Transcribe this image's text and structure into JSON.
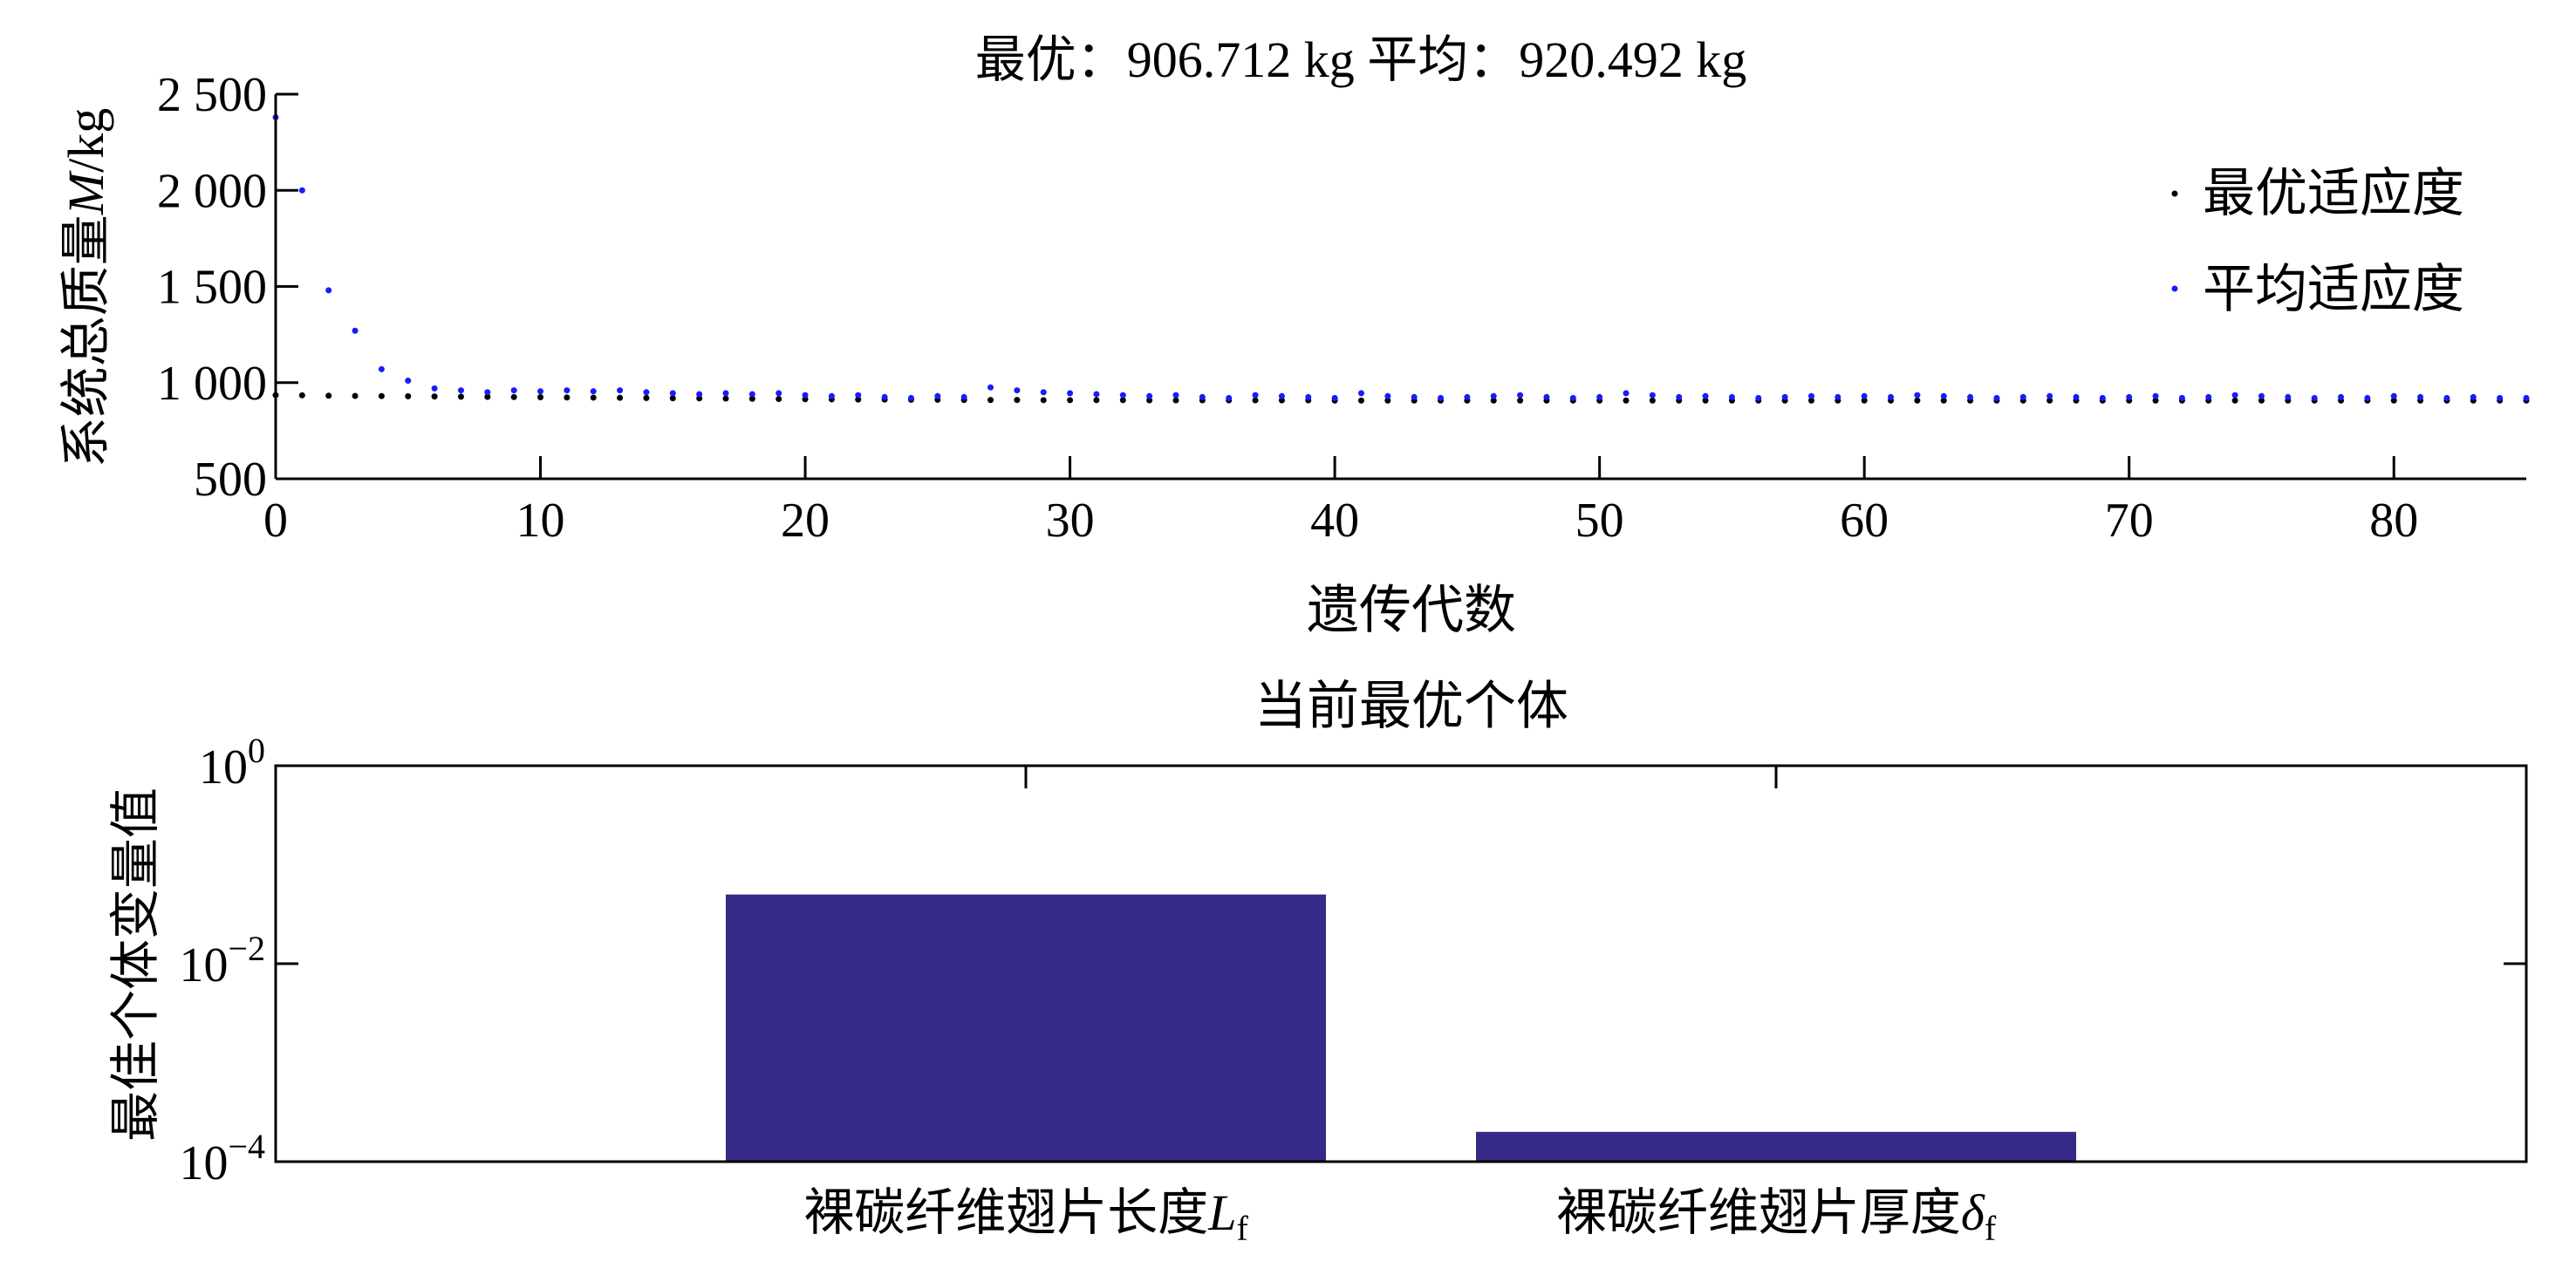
{
  "chart_data": [
    {
      "type": "scatter",
      "title": "最优：906.712 kg  平均：920.492 kg",
      "xlabel": "遗传代数",
      "ylabel": "系统总质量M/kg",
      "xlim": [
        0,
        85
      ],
      "ylim": [
        500,
        2500
      ],
      "xticks": [
        0,
        10,
        20,
        30,
        40,
        50,
        60,
        70,
        80
      ],
      "xtick_labels": [
        "0",
        "10",
        "20",
        "30",
        "40",
        "50",
        "60",
        "70",
        "80"
      ],
      "yticks": [
        500,
        1000,
        1500,
        2000,
        2500
      ],
      "ytick_labels": [
        "500",
        "1 000",
        "1 500",
        "2 000",
        "2 500"
      ],
      "legend_position": "top-right",
      "series": [
        {
          "name": "最优适应度",
          "color": "#000000",
          "x": [
            0,
            1,
            2,
            3,
            4,
            5,
            6,
            7,
            8,
            9,
            10,
            11,
            12,
            13,
            14,
            15,
            16,
            17,
            18,
            19,
            20,
            21,
            22,
            23,
            24,
            25,
            26,
            27,
            28,
            29,
            30,
            31,
            32,
            33,
            34,
            35,
            36,
            37,
            38,
            39,
            40,
            41,
            42,
            43,
            44,
            45,
            46,
            47,
            48,
            49,
            50,
            51,
            52,
            53,
            54,
            55,
            56,
            57,
            58,
            59,
            60,
            61,
            62,
            63,
            64,
            65,
            66,
            67,
            68,
            69,
            70,
            71,
            72,
            73,
            74,
            75,
            76,
            77,
            78,
            79,
            80,
            81,
            82,
            83,
            84,
            85
          ],
          "y": [
            935,
            934,
            932,
            931,
            930,
            929,
            928,
            927,
            926,
            925,
            924,
            923,
            922,
            921,
            920,
            919,
            918,
            917,
            916,
            915,
            914,
            913,
            912,
            912,
            911,
            911,
            910,
            910,
            910,
            909,
            909,
            909,
            909,
            908,
            908,
            908,
            908,
            908,
            908,
            908,
            907,
            907,
            907,
            907,
            907,
            907,
            907,
            907,
            907,
            907,
            907,
            907,
            907,
            907,
            907,
            907,
            907,
            907,
            907,
            907,
            907,
            907,
            907,
            907,
            907,
            907,
            907,
            907,
            907,
            907,
            907,
            907,
            907,
            907,
            907,
            907,
            907,
            907,
            907,
            907,
            907,
            907,
            907,
            907,
            907,
            907
          ]
        },
        {
          "name": "平均适应度",
          "color": "#1a1aff",
          "x": [
            0,
            1,
            2,
            3,
            4,
            5,
            6,
            7,
            8,
            9,
            10,
            11,
            12,
            13,
            14,
            15,
            16,
            17,
            18,
            19,
            20,
            21,
            22,
            23,
            24,
            25,
            26,
            27,
            28,
            29,
            30,
            31,
            32,
            33,
            34,
            35,
            36,
            37,
            38,
            39,
            40,
            41,
            42,
            43,
            44,
            45,
            46,
            47,
            48,
            49,
            50,
            51,
            52,
            53,
            54,
            55,
            56,
            57,
            58,
            59,
            60,
            61,
            62,
            63,
            64,
            65,
            66,
            67,
            68,
            69,
            70,
            71,
            72,
            73,
            74,
            75,
            76,
            77,
            78,
            79,
            80,
            81,
            82,
            83,
            84,
            85
          ],
          "y": [
            2380,
            2000,
            1480,
            1270,
            1070,
            1010,
            970,
            960,
            950,
            960,
            955,
            960,
            955,
            960,
            950,
            945,
            940,
            945,
            940,
            945,
            935,
            930,
            935,
            925,
            920,
            930,
            925,
            975,
            960,
            950,
            945,
            940,
            935,
            930,
            935,
            925,
            920,
            935,
            930,
            925,
            920,
            945,
            930,
            925,
            920,
            925,
            930,
            935,
            925,
            920,
            925,
            945,
            935,
            925,
            930,
            925,
            920,
            925,
            930,
            925,
            930,
            925,
            935,
            930,
            925,
            920,
            925,
            930,
            925,
            920,
            925,
            930,
            920,
            925,
            935,
            930,
            925,
            920,
            925,
            920,
            930,
            925,
            920,
            925,
            920,
            920
          ]
        }
      ]
    },
    {
      "type": "bar",
      "title": "当前最优个体",
      "xlabel": "",
      "ylabel": "最佳个体变量值",
      "yscale": "log",
      "ylim": [
        0.0001,
        1
      ],
      "ytick_labels": [
        {
          "value": 1,
          "base": "10",
          "exp": "0"
        },
        {
          "value": 0.01,
          "base": "10",
          "exp": "−2"
        },
        {
          "value": 0.0001,
          "base": "10",
          "exp": "−4"
        }
      ],
      "bar_color": "#352a87",
      "categories": [
        {
          "text": "裸碳纤维翅片长度",
          "symbol": "L",
          "sub": "f"
        },
        {
          "text": "裸碳纤维翅片厚度",
          "symbol": "δ",
          "sub": "f"
        }
      ],
      "values": [
        0.05,
        0.0002
      ]
    }
  ]
}
